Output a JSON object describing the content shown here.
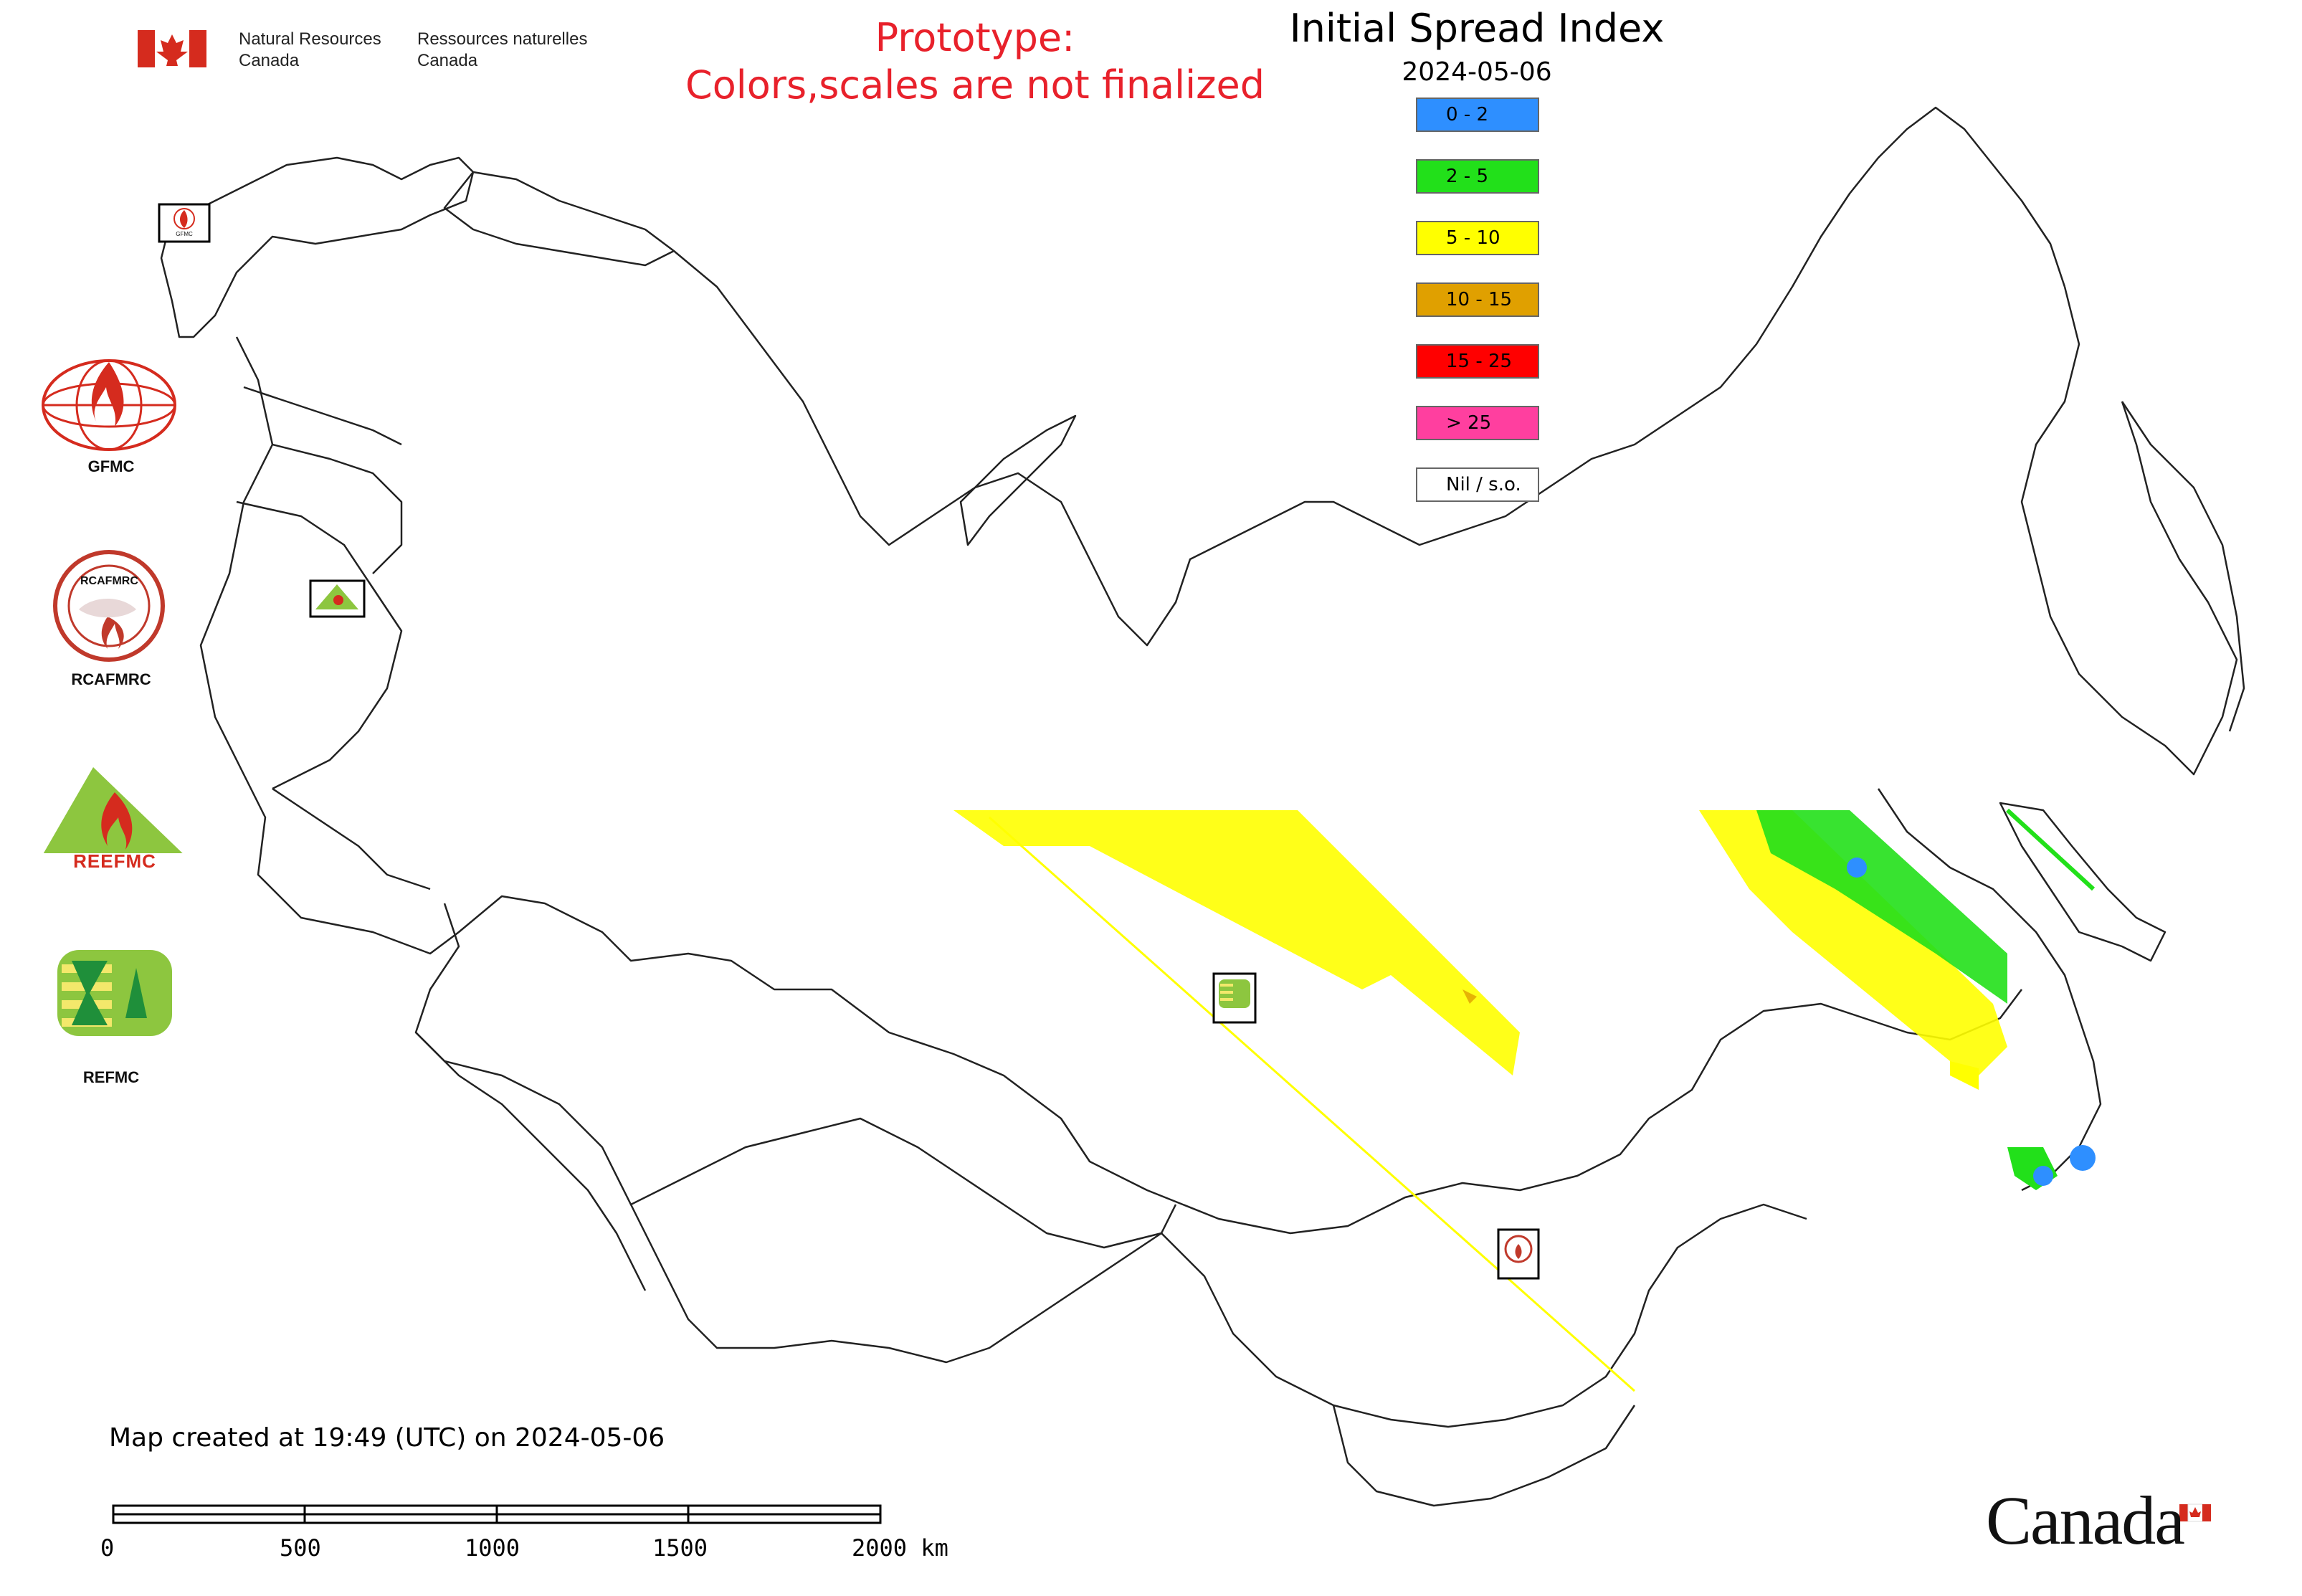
{
  "header": {
    "org_en_line1": "Natural Resources",
    "org_en_line2": "Canada",
    "org_fr_line1": "Ressources naturelles",
    "org_fr_line2": "Canada",
    "prototype_line1": "Prototype:",
    "prototype_line2": "Colors,scales are not finalized",
    "title": "Initial Spread Index",
    "date": "2024-05-06"
  },
  "legend": {
    "items": [
      {
        "label": "0 - 2",
        "color": "#2e8fff"
      },
      {
        "label": "2 - 5",
        "color": "#22e01a"
      },
      {
        "label": "5 - 10",
        "color": "#ffff00"
      },
      {
        "label": "10 - 15",
        "color": "#e0a000"
      },
      {
        "label": "15 - 25",
        "color": "#ff0000"
      },
      {
        "label": "> 25",
        "color": "#ff3f9f"
      },
      {
        "label": "Nil / s.o.",
        "color": "#ffffff"
      }
    ]
  },
  "logos": {
    "gfmc": "GFMC",
    "rcafmrc": "RCAFMRC",
    "reefmc": "REEFMC",
    "refmc": "REFMC",
    "rcafmrc_ring_text": "RCAFMRC",
    "reefmc_text": "REEFMC",
    "mini_gfmc": "GFMC"
  },
  "footer": {
    "created": "Map created at 19:49 (UTC) on 2024-05-06",
    "scale_ticks": [
      "0",
      "500",
      "1000",
      "1500",
      "2000 km"
    ],
    "wordmark": "Canada"
  },
  "colors": {
    "prototype_text": "#e8212b",
    "canada_flag_red": "#d52b1e",
    "boundary": "#222222"
  },
  "icons": {
    "flag": "canada-flag-icon",
    "fire": "fire-icon"
  }
}
